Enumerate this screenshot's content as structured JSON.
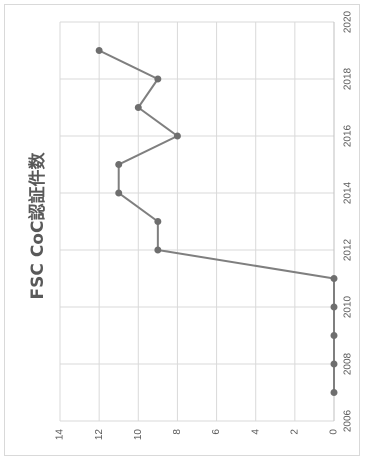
{
  "chart_data": {
    "type": "line",
    "title": "FSC CoC認証件数",
    "orientation": "rotated-90",
    "x": [
      2007,
      2008,
      2009,
      2010,
      2011,
      2012,
      2013,
      2014,
      2015,
      2016,
      2017,
      2018,
      2019
    ],
    "series": [
      {
        "values": [
          0,
          0,
          0,
          0,
          0,
          9,
          9,
          11,
          11,
          8,
          10,
          9,
          12
        ]
      }
    ],
    "xlim": [
      2006,
      2020
    ],
    "x_ticks": [
      "2006",
      "2008",
      "2010",
      "2012",
      "2014",
      "2016",
      "2018",
      "2020"
    ],
    "ylim": [
      0,
      14
    ],
    "y_ticks": [
      "0",
      "2",
      "4",
      "6",
      "8",
      "10",
      "12",
      "14"
    ],
    "grid": true,
    "legend": "none",
    "colors": {
      "line": "#7f7f7f",
      "marker": "#6e6e6e",
      "grid": "#d9d9d9",
      "text": "#595959"
    }
  }
}
